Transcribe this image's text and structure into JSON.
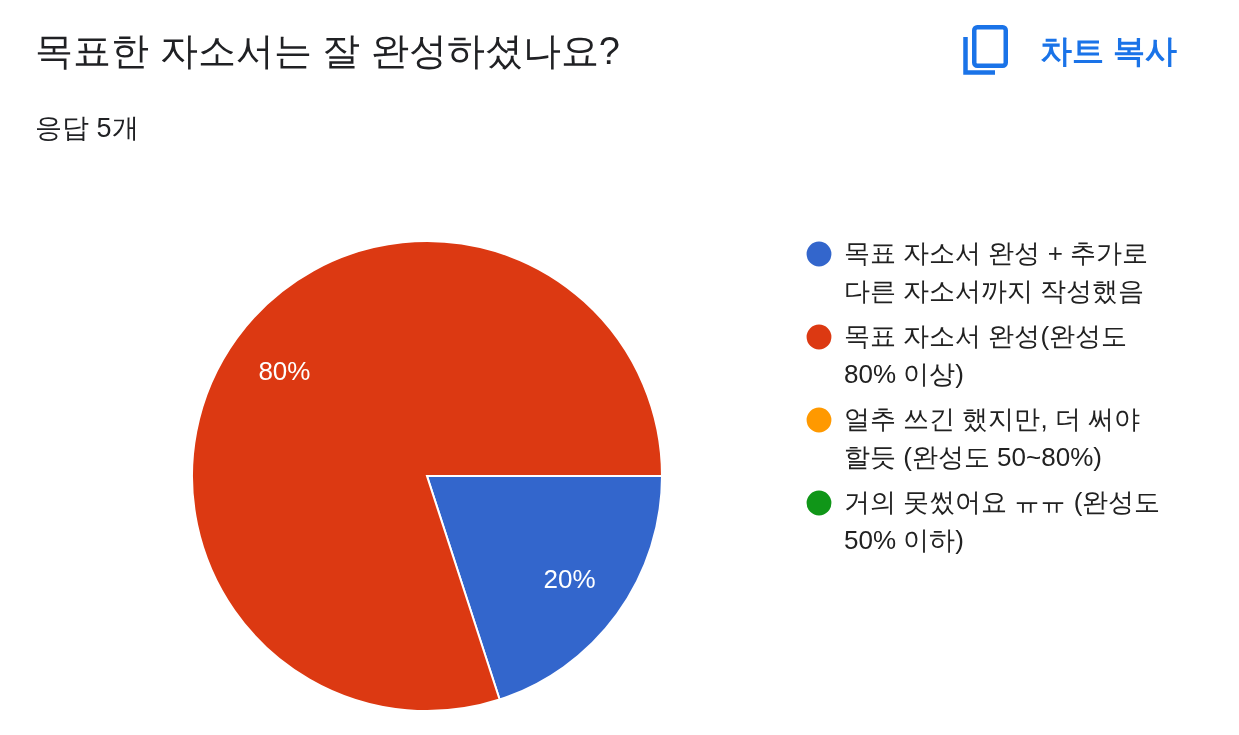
{
  "chart_data": {
    "type": "pie",
    "title": "목표한 자소서는 잘 완성하셨나요?",
    "subtitle": "응답 5개",
    "categories": [
      "목표 자소서 완성 + 추가로 다른 자소서까지 작성했음",
      "목표 자소서 완성(완성도 80% 이상)",
      "얼추 쓰긴 했지만, 더 써야 할듯 (완성도 50~80%)",
      "거의 못썼어요 ㅠㅠ (완성도 50% 이하)"
    ],
    "values": [
      20,
      80,
      0,
      0
    ],
    "colors": [
      "#3366cc",
      "#dc3912",
      "#ff9900",
      "#109618"
    ],
    "value_labels": [
      "20%",
      "80%",
      null,
      null
    ],
    "legend": "right",
    "annotations": [
      "차트 복사"
    ]
  }
}
